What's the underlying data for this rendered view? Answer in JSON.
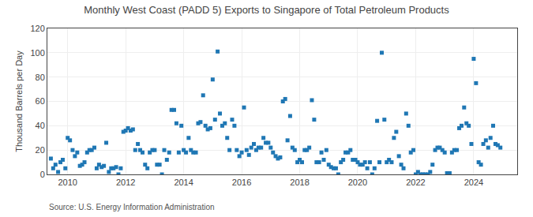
{
  "chart_data": {
    "type": "scatter",
    "title": "Monthly West Coast (PADD 5) Exports to Singapore of Total Petroleum Products",
    "y_label": "Thousand Barrels per Day",
    "annotations": [
      "Source: U.S. Energy Information Administration"
    ],
    "marker": "square",
    "grid": true,
    "xlim": [
      2009.3,
      2025.5
    ],
    "xticks": [
      2010,
      2012,
      2014,
      2016,
      2018,
      2020,
      2022,
      2024
    ],
    "ylim": [
      0,
      120
    ],
    "yticks": [
      0,
      20,
      40,
      60,
      80,
      100,
      120
    ],
    "x": [
      2009.42,
      2009.5,
      2009.58,
      2009.67,
      2009.75,
      2009.83,
      2009.92,
      2010.0,
      2010.08,
      2010.17,
      2010.25,
      2010.33,
      2010.42,
      2010.5,
      2010.58,
      2010.67,
      2010.75,
      2010.83,
      2010.92,
      2011.0,
      2011.08,
      2011.17,
      2011.25,
      2011.33,
      2011.42,
      2011.5,
      2011.58,
      2011.67,
      2011.75,
      2011.83,
      2011.92,
      2012.0,
      2012.08,
      2012.17,
      2012.25,
      2012.33,
      2012.42,
      2012.5,
      2012.58,
      2012.67,
      2012.75,
      2012.83,
      2012.92,
      2013.0,
      2013.08,
      2013.17,
      2013.25,
      2013.33,
      2013.42,
      2013.5,
      2013.58,
      2013.67,
      2013.75,
      2013.83,
      2013.92,
      2014.0,
      2014.08,
      2014.17,
      2014.25,
      2014.33,
      2014.42,
      2014.5,
      2014.58,
      2014.67,
      2014.75,
      2014.83,
      2014.92,
      2015.0,
      2015.08,
      2015.17,
      2015.25,
      2015.33,
      2015.42,
      2015.5,
      2015.58,
      2015.67,
      2015.75,
      2015.83,
      2015.92,
      2016.0,
      2016.08,
      2016.17,
      2016.25,
      2016.33,
      2016.42,
      2016.5,
      2016.58,
      2016.67,
      2016.75,
      2016.83,
      2016.92,
      2017.0,
      2017.08,
      2017.17,
      2017.25,
      2017.33,
      2017.42,
      2017.5,
      2017.58,
      2017.67,
      2017.75,
      2017.83,
      2017.92,
      2018.0,
      2018.08,
      2018.17,
      2018.25,
      2018.33,
      2018.42,
      2018.5,
      2018.58,
      2018.67,
      2018.75,
      2018.83,
      2018.92,
      2019.0,
      2019.08,
      2019.17,
      2019.25,
      2019.33,
      2019.42,
      2019.5,
      2019.58,
      2019.67,
      2019.75,
      2019.83,
      2019.92,
      2020.0,
      2020.08,
      2020.17,
      2020.25,
      2020.33,
      2020.42,
      2020.5,
      2020.58,
      2020.67,
      2020.75,
      2020.83,
      2020.92,
      2021.0,
      2021.08,
      2021.17,
      2021.25,
      2021.33,
      2021.42,
      2021.5,
      2021.58,
      2021.67,
      2021.75,
      2021.83,
      2021.92,
      2022.0,
      2022.08,
      2022.17,
      2022.25,
      2022.33,
      2022.42,
      2022.5,
      2022.58,
      2022.67,
      2022.75,
      2022.83,
      2022.92,
      2023.0,
      2023.08,
      2023.17,
      2023.25,
      2023.33,
      2023.42,
      2023.5,
      2023.58,
      2023.67,
      2023.75,
      2023.83,
      2023.92,
      2024.0,
      2024.08,
      2024.17,
      2024.25,
      2024.33,
      2024.42,
      2024.5,
      2024.58,
      2024.67,
      2024.75,
      2024.83,
      2024.92
    ],
    "values": [
      13,
      5,
      8,
      2,
      10,
      12,
      5,
      30,
      28,
      20,
      15,
      18,
      7,
      8,
      10,
      18,
      20,
      20,
      22,
      5,
      8,
      6,
      7,
      26,
      2,
      5,
      5,
      6,
      0,
      5,
      35,
      36,
      38,
      36,
      37,
      20,
      25,
      20,
      18,
      8,
      5,
      18,
      20,
      20,
      8,
      8,
      0,
      20,
      12,
      18,
      53,
      53,
      42,
      18,
      40,
      20,
      18,
      30,
      20,
      18,
      18,
      42,
      43,
      65,
      40,
      37,
      38,
      78,
      45,
      101,
      50,
      40,
      42,
      30,
      20,
      45,
      40,
      20,
      15,
      18,
      55,
      20,
      16,
      22,
      25,
      20,
      22,
      22,
      30,
      26,
      26,
      22,
      18,
      15,
      13,
      14,
      60,
      62,
      28,
      48,
      22,
      20,
      10,
      12,
      10,
      20,
      20,
      22,
      61,
      45,
      10,
      10,
      18,
      12,
      20,
      8,
      6,
      5,
      5,
      0,
      10,
      12,
      18,
      18,
      20,
      12,
      12,
      10,
      8,
      8,
      10,
      5,
      10,
      0,
      5,
      44,
      10,
      100,
      45,
      10,
      12,
      10,
      30,
      35,
      15,
      8,
      5,
      50,
      40,
      18,
      20,
      0,
      2,
      0,
      0,
      0,
      0,
      2,
      8,
      20,
      22,
      22,
      20,
      18,
      1,
      1,
      18,
      20,
      20,
      38,
      40,
      55,
      42,
      40,
      25,
      95,
      75,
      10,
      8,
      25,
      28,
      22,
      30,
      40,
      25,
      24,
      22
    ]
  }
}
